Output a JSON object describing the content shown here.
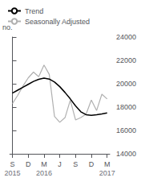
{
  "chart_data": {
    "type": "line",
    "ylabel": "no.",
    "x": [
      0,
      1,
      2,
      3,
      4,
      5,
      6,
      7,
      8,
      9,
      10,
      11,
      12,
      13,
      14,
      15,
      16,
      17,
      18
    ],
    "series": [
      {
        "name": "Trend",
        "color": "#000000",
        "values": [
          19200,
          19450,
          19700,
          19950,
          20200,
          20380,
          20480,
          20400,
          20150,
          19750,
          19250,
          18700,
          18100,
          17600,
          17350,
          17300,
          17350,
          17420,
          17500
        ]
      },
      {
        "name": "Seasonally Adjusted",
        "color": "#b0b0b0",
        "values": [
          18300,
          19000,
          19800,
          20500,
          21000,
          20600,
          21600,
          20800,
          17200,
          16700,
          17100,
          18600,
          16900,
          17100,
          17400,
          18600,
          17700,
          19100,
          18700
        ]
      }
    ],
    "xlim": [
      -0.5,
      18.5
    ],
    "xticks": [
      {
        "value": 0,
        "label": "S"
      },
      {
        "value": 3,
        "label": "D"
      },
      {
        "value": 6,
        "label": "M"
      },
      {
        "value": 9,
        "label": "J"
      },
      {
        "value": 12,
        "label": "S"
      },
      {
        "value": 15,
        "label": "D"
      },
      {
        "value": 18,
        "label": "M"
      }
    ],
    "ylim": [
      14000,
      24000
    ],
    "yticks": [
      14000,
      16000,
      18000,
      20000,
      22000,
      24000
    ],
    "annotations": [
      {
        "text": "2015",
        "x": 0
      },
      {
        "text": "2016",
        "x": 6
      },
      {
        "text": "2017",
        "x": 18
      }
    ],
    "legend": "upper left",
    "grid": false
  }
}
